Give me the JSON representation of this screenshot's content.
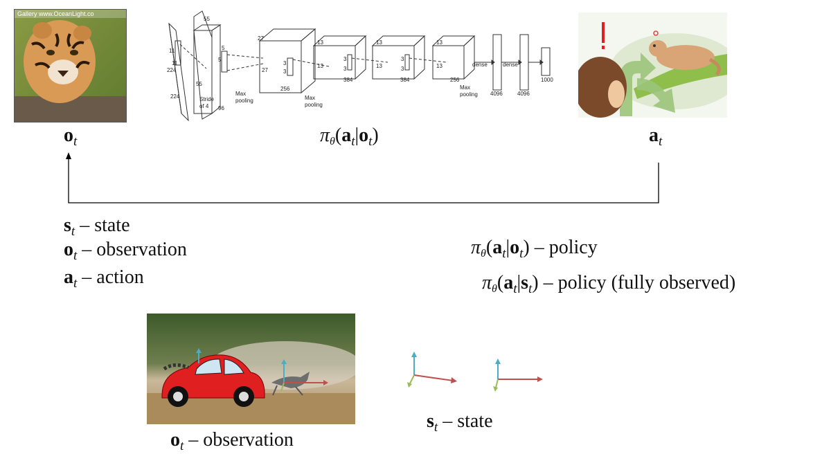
{
  "top_labels": {
    "obs": {
      "sym": "o",
      "sub": "t"
    },
    "policy": {
      "pi": "π",
      "theta": "θ",
      "a": "a",
      "t": "t",
      "o": "o"
    },
    "act": {
      "sym": "a",
      "sub": "t"
    }
  },
  "definitions": {
    "state": {
      "sym": "s",
      "sub": "t",
      "text": " – state"
    },
    "observation": {
      "sym": "o",
      "sub": "t",
      "text": " – observation"
    },
    "action": {
      "sym": "a",
      "sub": "t",
      "text": " – action"
    }
  },
  "policies": {
    "partial": {
      "pi": "π",
      "theta": "θ",
      "a": "a",
      "t": "t",
      "cond": "o",
      "text": " – policy"
    },
    "full": {
      "pi": "π",
      "theta": "θ",
      "a": "a",
      "t": "t",
      "cond": "s",
      "text": " – policy (fully observed)"
    }
  },
  "bottom_captions": {
    "observation": {
      "sym": "o",
      "sub": "t",
      "text": " – observation"
    },
    "state": {
      "sym": "s",
      "sub": "t",
      "text": " – state"
    }
  },
  "watermark": "Gallery  www.OceanLight.co",
  "network": {
    "input_dims": [
      "224",
      "224",
      "11",
      "11"
    ],
    "conv1": [
      "55",
      "55",
      "96",
      "5",
      "5"
    ],
    "conv2": [
      "27",
      "27",
      "256",
      "3",
      "3"
    ],
    "conv3": [
      "13",
      "13",
      "384",
      "3",
      "3"
    ],
    "conv4": [
      "13",
      "13",
      "384",
      "3",
      "3"
    ],
    "conv5": [
      "13",
      "13",
      "256"
    ],
    "stride": [
      "Stride",
      "of 4"
    ],
    "pool1": [
      "Max",
      "pooling"
    ],
    "pool2": [
      "Max",
      "pooling"
    ],
    "pool3": [
      "Max",
      "pooling"
    ],
    "dense": [
      "dense",
      "dense"
    ],
    "fc": [
      "4096",
      "4096",
      "1000"
    ]
  },
  "colors": {
    "arrow_red": "#c0504d",
    "arrow_blue": "#4bacc6",
    "arrow_green": "#9bbb59",
    "car_red": "#e02020"
  }
}
